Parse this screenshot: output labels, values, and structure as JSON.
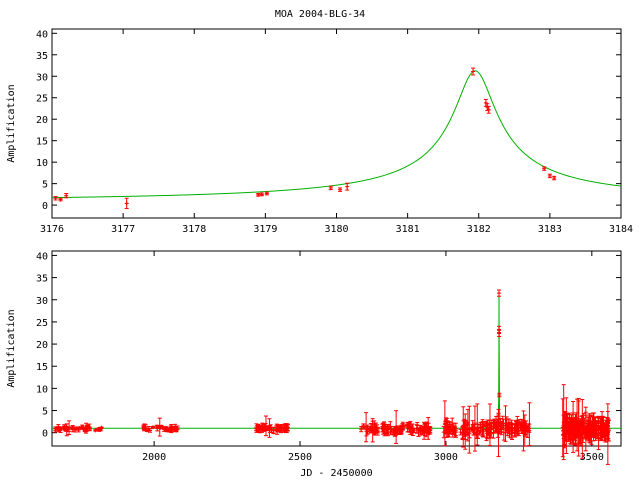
{
  "title": "MOA 2004-BLG-34",
  "colors": {
    "model": "#00b000",
    "data": "#ff0000",
    "axis": "#000000"
  },
  "chart_data": [
    {
      "type": "scatter",
      "panel": "top",
      "title": "MOA 2004-BLG-34",
      "xlabel": "",
      "ylabel": "Amplification",
      "xlim": [
        3176,
        3184
      ],
      "ylim": [
        -3,
        41
      ],
      "xticks": [
        3176,
        3177,
        3178,
        3179,
        3180,
        3181,
        3182,
        3183,
        3184
      ],
      "yticks": [
        0,
        5,
        10,
        15,
        20,
        25,
        30,
        35,
        40
      ],
      "grid": false,
      "model": {
        "t0": 3181.95,
        "u0": 0.032,
        "tE": 9.0,
        "xs": [
          3176,
          3184
        ]
      },
      "points": [
        {
          "x": 3176.05,
          "y": 1.6,
          "e": 0.4
        },
        {
          "x": 3176.12,
          "y": 1.3,
          "e": 0.3
        },
        {
          "x": 3176.2,
          "y": 2.2,
          "e": 0.5
        },
        {
          "x": 3177.05,
          "y": 0.4,
          "e": 1.2
        },
        {
          "x": 3178.9,
          "y": 2.4,
          "e": 0.3
        },
        {
          "x": 3178.95,
          "y": 2.5,
          "e": 0.3
        },
        {
          "x": 3179.02,
          "y": 2.7,
          "e": 0.3
        },
        {
          "x": 3179.92,
          "y": 4.0,
          "e": 0.4
        },
        {
          "x": 3180.05,
          "y": 3.6,
          "e": 0.4
        },
        {
          "x": 3180.15,
          "y": 4.3,
          "e": 0.8
        },
        {
          "x": 3181.92,
          "y": 31.1,
          "e": 0.8
        },
        {
          "x": 3182.1,
          "y": 23.8,
          "e": 0.8
        },
        {
          "x": 3182.12,
          "y": 22.8,
          "e": 0.8
        },
        {
          "x": 3182.14,
          "y": 22.2,
          "e": 0.8
        },
        {
          "x": 3182.92,
          "y": 8.5,
          "e": 0.4
        },
        {
          "x": 3183.0,
          "y": 6.8,
          "e": 0.4
        },
        {
          "x": 3183.06,
          "y": 6.3,
          "e": 0.4
        }
      ]
    },
    {
      "type": "scatter",
      "panel": "bottom",
      "title": "",
      "xlabel": "JD - 2450000",
      "ylabel": "Amplification",
      "xlim": [
        1650,
        3600
      ],
      "ylim": [
        -3,
        41
      ],
      "xticks": [
        2000,
        2500,
        3000,
        3500
      ],
      "yticks": [
        0,
        5,
        10,
        15,
        20,
        25,
        30,
        35,
        40
      ],
      "grid": false,
      "model": {
        "t0": 3181.95,
        "u0": 0.032,
        "tE": 9.0,
        "xs": [
          1650,
          3600
        ]
      },
      "seasons": [
        {
          "start": 1660,
          "end": 1780,
          "n": 40,
          "base": 1.0,
          "spread": 0.5,
          "err": 0.4
        },
        {
          "start": 1790,
          "end": 1820,
          "n": 6,
          "base": 0.8,
          "spread": 0.4,
          "err": 0.4
        },
        {
          "start": 1960,
          "end": 2090,
          "n": 35,
          "base": 1.0,
          "spread": 0.5,
          "err": 0.5
        },
        {
          "start": 2350,
          "end": 2460,
          "n": 60,
          "base": 1.0,
          "spread": 0.6,
          "err": 0.6
        },
        {
          "start": 2700,
          "end": 2950,
          "n": 110,
          "base": 0.9,
          "spread": 0.8,
          "err": 0.9
        },
        {
          "start": 2990,
          "end": 3290,
          "n": 150,
          "base": 1.0,
          "spread": 1.2,
          "err": 1.3
        },
        {
          "start": 3400,
          "end": 3560,
          "n": 170,
          "base": 1.0,
          "spread": 1.6,
          "err": 2.0
        }
      ],
      "peak_points": [
        {
          "x": 3181.9,
          "y": 31.5,
          "e": 0.7
        },
        {
          "x": 3182.1,
          "y": 23.3,
          "e": 0.7
        },
        {
          "x": 3182.2,
          "y": 22.4,
          "e": 0.7
        },
        {
          "x": 3183.0,
          "y": 8.5,
          "e": 0.4
        },
        {
          "x": 3180.0,
          "y": 4.0,
          "e": 0.4
        },
        {
          "x": 3179.0,
          "y": 2.6,
          "e": 0.4
        }
      ]
    }
  ]
}
